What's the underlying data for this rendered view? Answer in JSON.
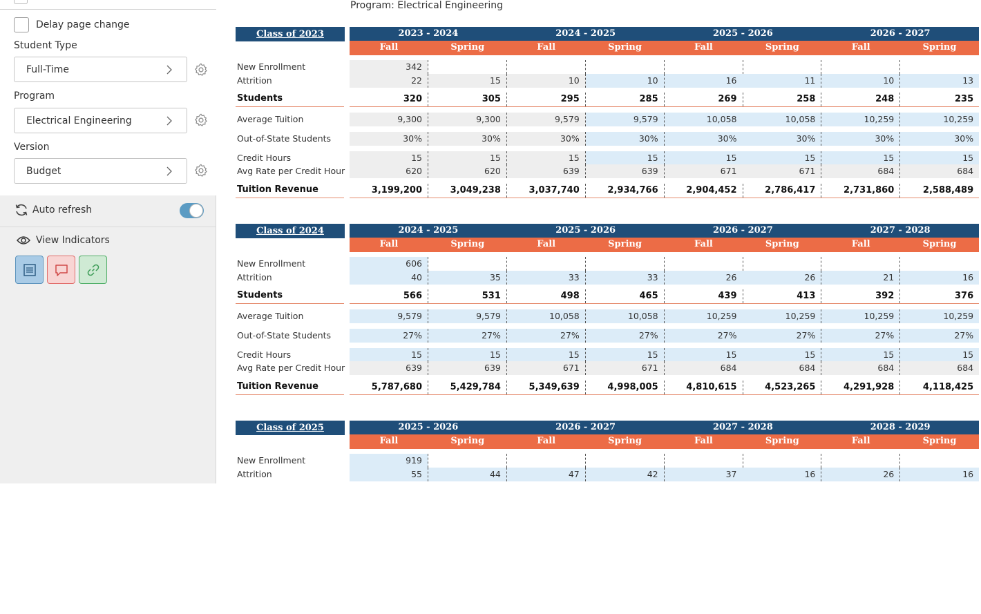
{
  "sidebar": {
    "delay_label": "Delay page change",
    "student_type_label": "Student Type",
    "student_type_value": "Full-Time",
    "program_label": "Program",
    "program_value": "Electrical Engineering",
    "version_label": "Version",
    "version_value": "Budget",
    "auto_refresh_label": "Auto refresh",
    "auto_refresh_on": true,
    "view_indicators_label": "View Indicators",
    "indicator_buttons": [
      "notes-icon",
      "comment-icon",
      "link-icon"
    ]
  },
  "main": {
    "program_line": "Program: Electrical Engineering",
    "term_labels": [
      "Fall",
      "Spring",
      "Fall",
      "Spring",
      "Fall",
      "Spring",
      "Fall",
      "Spring"
    ],
    "row_labels": [
      "New Enrollment",
      "Attrition",
      "Students",
      "Average Tuition",
      "Out-of-State Students",
      "Credit Hours",
      "Avg Rate per Credit Hour",
      "Tuition Revenue"
    ],
    "sections": [
      {
        "title": "Class of 2023",
        "years": [
          "2023 - 2024",
          "2024 - 2025",
          "2025 - 2026",
          "2026 - 2027"
        ],
        "first_col_shade": "gray",
        "new_enrollment": "342",
        "attrition": [
          "22",
          "15",
          "10",
          "10",
          "16",
          "11",
          "10",
          "13"
        ],
        "students": [
          "320",
          "305",
          "295",
          "285",
          "269",
          "258",
          "248",
          "235"
        ],
        "avg_tuition": [
          "9,300",
          "9,300",
          "9,579",
          "9,579",
          "10,058",
          "10,058",
          "10,259",
          "10,259"
        ],
        "out_of_state": [
          "30%",
          "30%",
          "30%",
          "30%",
          "30%",
          "30%",
          "30%",
          "30%"
        ],
        "credit_hours": [
          "15",
          "15",
          "15",
          "15",
          "15",
          "15",
          "15",
          "15"
        ],
        "rate_per_hour": [
          "620",
          "620",
          "639",
          "639",
          "671",
          "671",
          "684",
          "684"
        ],
        "revenue": [
          "3,199,200",
          "3,049,238",
          "3,037,740",
          "2,934,766",
          "2,904,452",
          "2,786,417",
          "2,731,860",
          "2,588,489"
        ]
      },
      {
        "title": "Class of 2024",
        "years": [
          "2024 - 2025",
          "2025 - 2026",
          "2026 - 2027",
          "2027 - 2028"
        ],
        "first_col_shade": "blue",
        "new_enrollment": "606",
        "attrition": [
          "40",
          "35",
          "33",
          "33",
          "26",
          "26",
          "21",
          "16"
        ],
        "students": [
          "566",
          "531",
          "498",
          "465",
          "439",
          "413",
          "392",
          "376"
        ],
        "avg_tuition": [
          "9,579",
          "9,579",
          "10,058",
          "10,058",
          "10,259",
          "10,259",
          "10,259",
          "10,259"
        ],
        "out_of_state": [
          "27%",
          "27%",
          "27%",
          "27%",
          "27%",
          "27%",
          "27%",
          "27%"
        ],
        "credit_hours": [
          "15",
          "15",
          "15",
          "15",
          "15",
          "15",
          "15",
          "15"
        ],
        "rate_per_hour": [
          "639",
          "639",
          "671",
          "671",
          "684",
          "684",
          "684",
          "684"
        ],
        "revenue": [
          "5,787,680",
          "5,429,784",
          "5,349,639",
          "4,998,005",
          "4,810,615",
          "4,523,265",
          "4,291,928",
          "4,118,425"
        ]
      },
      {
        "title": "Class of 2025",
        "years": [
          "2025 - 2026",
          "2026 - 2027",
          "2027 - 2028",
          "2028 - 2029"
        ],
        "first_col_shade": "blue",
        "new_enrollment": "919",
        "attrition": [
          "55",
          "44",
          "47",
          "42",
          "37",
          "16",
          "26",
          "16"
        ]
      }
    ]
  }
}
